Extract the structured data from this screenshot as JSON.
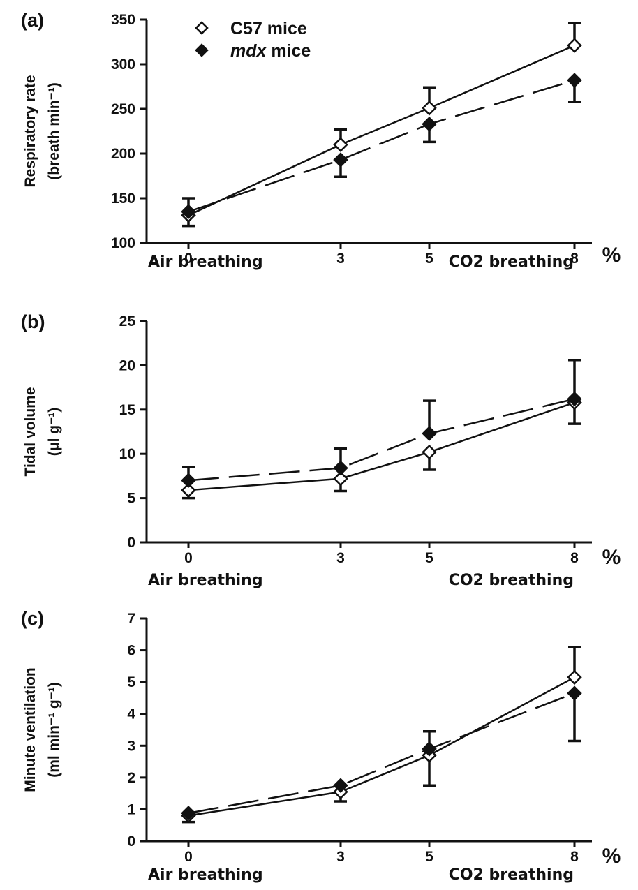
{
  "legend": {
    "c57": "C57 mice",
    "mdx_italic": "mdx",
    "mdx_rest": " mice"
  },
  "x_axis": {
    "unit": "%",
    "air_label": "Air breathing",
    "co2_label": "CO2 breathing"
  },
  "colors": {
    "c57_marker_fill": "#ffffff",
    "mdx_marker_fill": "#111111",
    "line": "#111111"
  },
  "chart_data": [
    {
      "type": "line",
      "panel": "(a)",
      "ylabel_line1": "Respiratory rate",
      "ylabel_line2": "(breath min⁻¹)",
      "x": [
        0,
        3,
        5,
        8
      ],
      "ylim": [
        100,
        350
      ],
      "yticks": [
        100,
        150,
        200,
        250,
        300,
        350
      ],
      "series": [
        {
          "name": "C57 mice",
          "values": [
            131,
            210,
            251,
            321
          ],
          "err_up": [
            19,
            17,
            23,
            25
          ],
          "err_down": [
            12,
            0,
            0,
            0
          ]
        },
        {
          "name": "mdx mice",
          "values": [
            135,
            193,
            233,
            282
          ],
          "err_up": [
            0,
            0,
            0,
            0
          ],
          "err_down": [
            0,
            19,
            20,
            24
          ]
        }
      ]
    },
    {
      "type": "line",
      "panel": "(b)",
      "ylabel_line1": "Tidal volume",
      "ylabel_line2": "(μl g⁻¹)",
      "x": [
        0,
        3,
        5,
        8
      ],
      "ylim": [
        0,
        25
      ],
      "yticks": [
        0,
        5,
        10,
        15,
        20,
        25
      ],
      "series": [
        {
          "name": "C57 mice",
          "values": [
            5.9,
            7.2,
            10.2,
            15.8
          ],
          "err_up": [
            0,
            0,
            0,
            0
          ],
          "err_down": [
            0.9,
            1.4,
            2.0,
            2.4
          ]
        },
        {
          "name": "mdx mice",
          "values": [
            7.0,
            8.4,
            12.3,
            16.2
          ],
          "err_up": [
            1.5,
            2.2,
            3.7,
            4.4
          ],
          "err_down": [
            0,
            0,
            0,
            0
          ]
        }
      ]
    },
    {
      "type": "line",
      "panel": "(c)",
      "ylabel_line1": "Minute ventilation",
      "ylabel_line2": "(ml min⁻¹ g⁻¹)",
      "x": [
        0,
        3,
        5,
        8
      ],
      "ylim": [
        0,
        7
      ],
      "yticks": [
        0,
        1,
        2,
        3,
        4,
        5,
        6,
        7
      ],
      "series": [
        {
          "name": "C57 mice",
          "values": [
            0.8,
            1.55,
            2.7,
            5.15
          ],
          "err_up": [
            0,
            0,
            0,
            0.95
          ],
          "err_down": [
            0.2,
            0.3,
            0.95,
            0
          ]
        },
        {
          "name": "mdx mice",
          "values": [
            0.88,
            1.75,
            2.9,
            4.65
          ],
          "err_up": [
            0,
            0,
            0.55,
            0
          ],
          "err_down": [
            0,
            0,
            0,
            1.5
          ]
        }
      ]
    }
  ]
}
